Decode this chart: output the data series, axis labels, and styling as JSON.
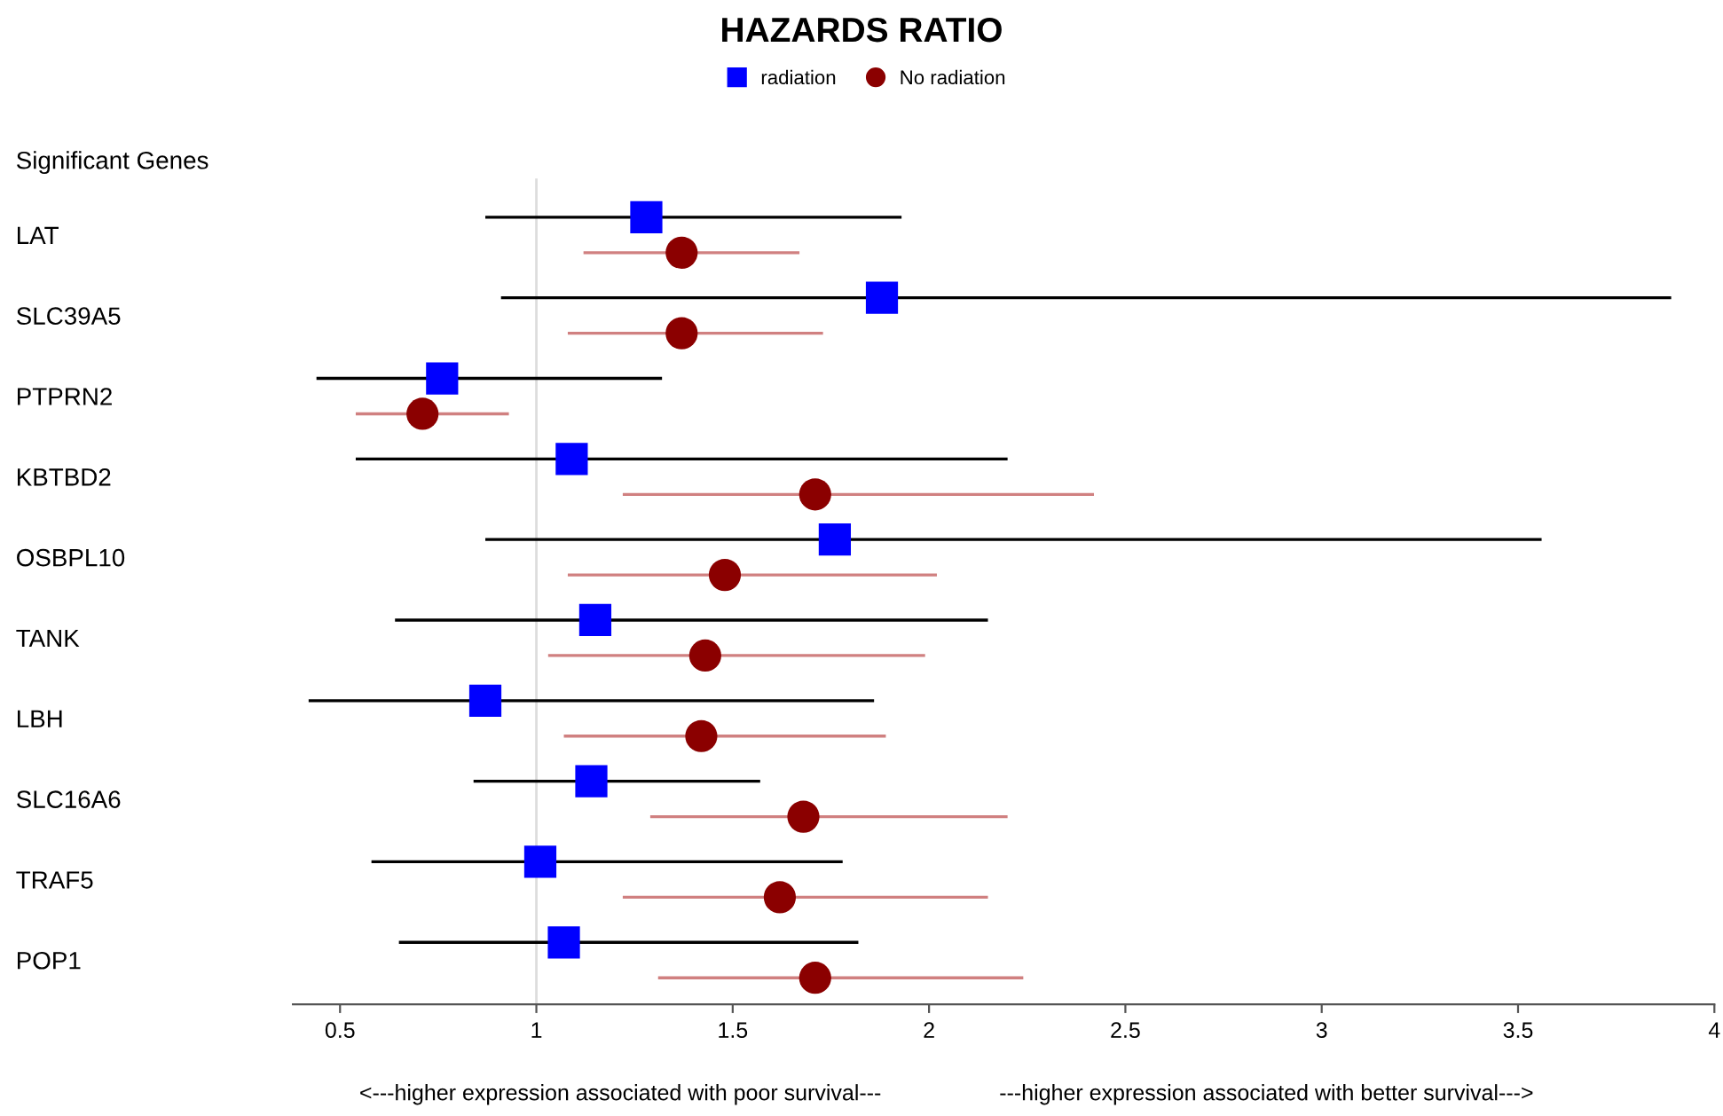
{
  "chart_data": {
    "type": "scatter",
    "orientation": "horizontal",
    "title": "HAZARDS RATIO",
    "ylabel": "Significant Genes",
    "categories": [
      "LAT",
      "SLC39A5",
      "PTPRN2",
      "KBTBD2",
      "OSBPL10",
      "TANK",
      "LBH",
      "SLC16A6",
      "TRAF5",
      "POP1"
    ],
    "series": [
      {
        "name": "radiation",
        "color": "#0000ff",
        "marker": "square",
        "values": [
          1.28,
          1.88,
          0.76,
          1.09,
          1.76,
          1.15,
          0.87,
          1.14,
          1.01,
          1.07
        ],
        "errors": [
          [
            0.87,
            1.93
          ],
          [
            0.91,
            3.89
          ],
          [
            0.44,
            1.32
          ],
          [
            0.54,
            2.2
          ],
          [
            0.87,
            3.56
          ],
          [
            0.64,
            2.15
          ],
          [
            0.42,
            1.86
          ],
          [
            0.84,
            1.57
          ],
          [
            0.58,
            1.78
          ],
          [
            0.65,
            1.82
          ]
        ]
      },
      {
        "name": "No radiation",
        "color": "#8b0000",
        "marker": "circle",
        "values": [
          1.37,
          1.37,
          0.71,
          1.71,
          1.48,
          1.43,
          1.42,
          1.68,
          1.62,
          1.71
        ],
        "errors": [
          [
            1.12,
            1.67
          ],
          [
            1.08,
            1.73
          ],
          [
            0.54,
            0.93
          ],
          [
            1.22,
            2.42
          ],
          [
            1.08,
            2.02
          ],
          [
            1.03,
            1.99
          ],
          [
            1.07,
            1.89
          ],
          [
            1.29,
            2.2
          ],
          [
            1.22,
            2.15
          ],
          [
            1.31,
            2.24
          ]
        ]
      }
    ],
    "xlim": [
      0.38,
      4.0
    ],
    "xticks": [
      0.5,
      1,
      1.5,
      2,
      2.5,
      3,
      3.5,
      4
    ],
    "ref_lines": [
      {
        "axis": "x",
        "value": 1,
        "color": "#dddddd"
      }
    ],
    "annotations": [
      "<---higher expression associated with poor survival---",
      "---higher expression associated with better survival--->"
    ],
    "legend": "top",
    "grid": false
  }
}
